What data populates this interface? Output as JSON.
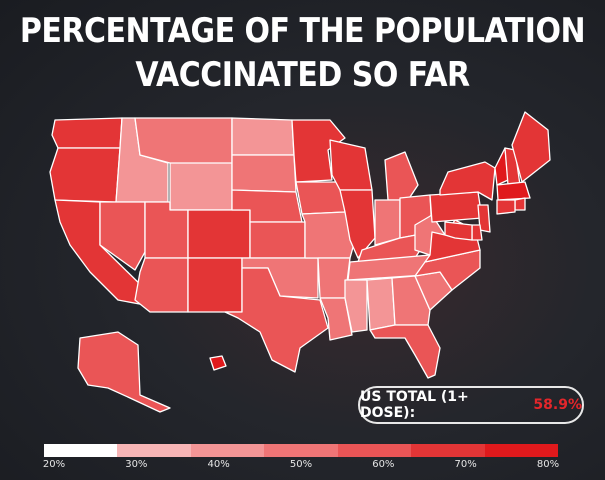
{
  "title": {
    "line1": "PERCENTAGE OF THE POPULATION",
    "line2": "VACCINATED SO FAR"
  },
  "us_total": {
    "label": "US TOTAL (1+ DOSE):",
    "value": "58.9%"
  },
  "legend": {
    "ticks": [
      "20%",
      "30%",
      "40%",
      "50%",
      "60%",
      "70%",
      "80%"
    ],
    "colors": [
      "#ffffff",
      "#f7b5b6",
      "#f39596",
      "#ef7576",
      "#ea5556",
      "#e33536",
      "#e0191c"
    ]
  },
  "chart_data": {
    "type": "choropleth",
    "region": "United States",
    "value_unit": "% of population with at least one dose (binned)",
    "scale_bins": [
      [
        20,
        30
      ],
      [
        30,
        40
      ],
      [
        40,
        50
      ],
      [
        50,
        60
      ],
      [
        60,
        70
      ],
      [
        70,
        80
      ]
    ],
    "states": [
      {
        "id": "WA",
        "bin": "60-70%"
      },
      {
        "id": "OR",
        "bin": "60-70%"
      },
      {
        "id": "CA",
        "bin": "60-70%"
      },
      {
        "id": "ID",
        "bin": "30-40%"
      },
      {
        "id": "NV",
        "bin": "50-60%"
      },
      {
        "id": "MT",
        "bin": "40-50%"
      },
      {
        "id": "WY",
        "bin": "30-40%"
      },
      {
        "id": "UT",
        "bin": "50-60%"
      },
      {
        "id": "AZ",
        "bin": "50-60%"
      },
      {
        "id": "CO",
        "bin": "60-70%"
      },
      {
        "id": "NM",
        "bin": "60-70%"
      },
      {
        "id": "ND",
        "bin": "30-40%"
      },
      {
        "id": "SD",
        "bin": "40-50%"
      },
      {
        "id": "NE",
        "bin": "50-60%"
      },
      {
        "id": "KS",
        "bin": "50-60%"
      },
      {
        "id": "OK",
        "bin": "40-50%"
      },
      {
        "id": "TX",
        "bin": "50-60%"
      },
      {
        "id": "MN",
        "bin": "60-70%"
      },
      {
        "id": "IA",
        "bin": "50-60%"
      },
      {
        "id": "MO",
        "bin": "40-50%"
      },
      {
        "id": "AR",
        "bin": "40-50%"
      },
      {
        "id": "LA",
        "bin": "40-50%"
      },
      {
        "id": "WI",
        "bin": "60-70%"
      },
      {
        "id": "IL",
        "bin": "60-70%"
      },
      {
        "id": "MI",
        "bin": "50-60%"
      },
      {
        "id": "IN",
        "bin": "40-50%"
      },
      {
        "id": "OH",
        "bin": "50-60%"
      },
      {
        "id": "KY",
        "bin": "50-60%"
      },
      {
        "id": "TN",
        "bin": "40-50%"
      },
      {
        "id": "MS",
        "bin": "30-40%"
      },
      {
        "id": "AL",
        "bin": "30-40%"
      },
      {
        "id": "GA",
        "bin": "40-50%"
      },
      {
        "id": "FL",
        "bin": "50-60%"
      },
      {
        "id": "SC",
        "bin": "40-50%"
      },
      {
        "id": "NC",
        "bin": "50-60%"
      },
      {
        "id": "VA",
        "bin": "60-70%"
      },
      {
        "id": "WV",
        "bin": "40-50%"
      },
      {
        "id": "PA",
        "bin": "60-70%"
      },
      {
        "id": "NY",
        "bin": "60-70%"
      },
      {
        "id": "VT",
        "bin": "70-80%"
      },
      {
        "id": "NH",
        "bin": "60-70%"
      },
      {
        "id": "ME",
        "bin": "60-70%"
      },
      {
        "id": "MA",
        "bin": "70-80%"
      },
      {
        "id": "RI",
        "bin": "60-70%"
      },
      {
        "id": "CT",
        "bin": "60-70%"
      },
      {
        "id": "NJ",
        "bin": "60-70%"
      },
      {
        "id": "DE",
        "bin": "60-70%"
      },
      {
        "id": "MD",
        "bin": "60-70%"
      },
      {
        "id": "AK",
        "bin": "50-60%"
      },
      {
        "id": "HI",
        "bin": "70-80%"
      }
    ]
  }
}
